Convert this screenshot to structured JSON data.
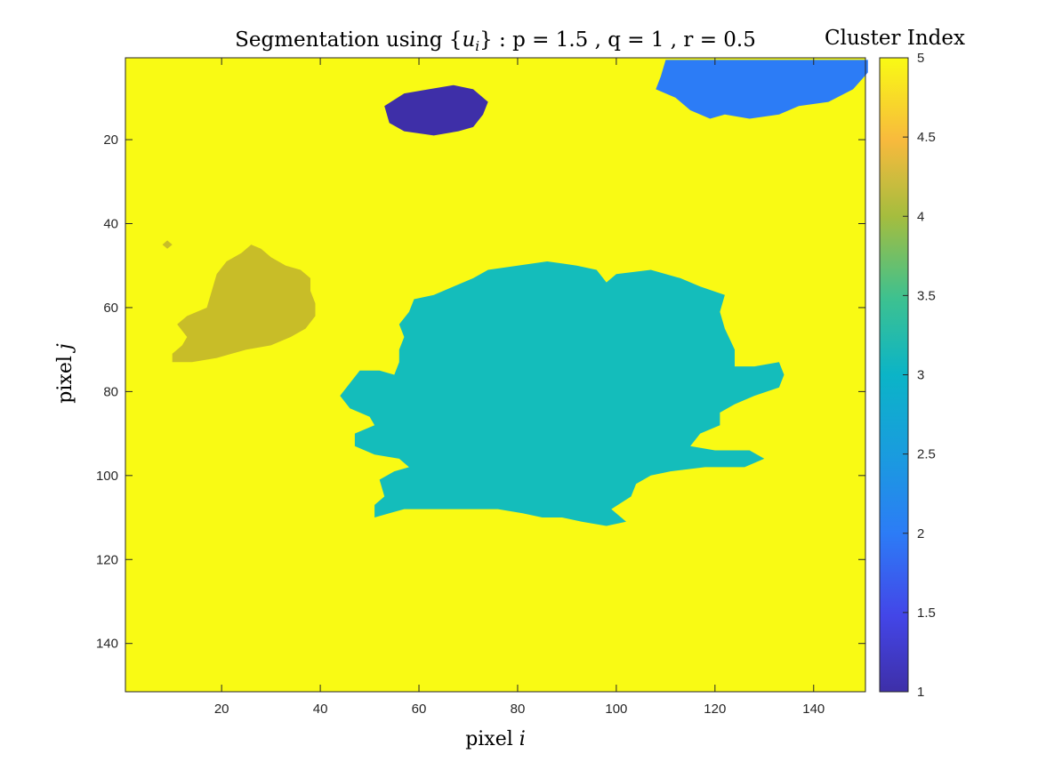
{
  "chart_data": {
    "type": "heatmap",
    "title_prefix": "Segmentation using {",
    "title_var": "u",
    "title_sub": "i",
    "title_suffix": "} : p = 1.5 , q = 1 , r = 0.5",
    "xlabel_text": "pixel ",
    "xlabel_var": "i",
    "ylabel_text": "pixel ",
    "ylabel_var": "j",
    "colorbar_title": "Cluster Index",
    "xlim": [
      0.5,
      150.5
    ],
    "ylim": [
      0.5,
      151.5
    ],
    "y_direction": "reverse",
    "colormap": "parula",
    "clim": [
      1,
      5
    ],
    "background_cluster": 5,
    "x_ticks": [
      20,
      40,
      60,
      80,
      100,
      120,
      140
    ],
    "x_tick_labels": [
      "20",
      "40",
      "60",
      "80",
      "100",
      "120",
      "140"
    ],
    "y_ticks": [
      20,
      40,
      60,
      80,
      100,
      120,
      140
    ],
    "y_tick_labels": [
      "20",
      "40",
      "60",
      "80",
      "100",
      "120",
      "140"
    ],
    "colorbar_ticks": [
      1,
      1.5,
      2,
      2.5,
      3,
      3.5,
      4,
      4.5,
      5
    ],
    "colorbar_tick_labels": [
      "1",
      "1.5",
      "2",
      "2.5",
      "3",
      "3.5",
      "4",
      "4.5",
      "5"
    ],
    "cluster_colors": {
      "1": "#3E2FA8",
      "2": "#2C7CF6",
      "3": "#14BDBB",
      "4": "#C8BD28",
      "5": "#F9FA14"
    },
    "regions": [
      {
        "cluster": 1,
        "outline": [
          [
            53,
            12
          ],
          [
            57,
            9
          ],
          [
            62,
            8
          ],
          [
            67,
            7
          ],
          [
            71,
            8
          ],
          [
            74,
            11
          ],
          [
            73,
            14
          ],
          [
            71,
            17
          ],
          [
            68,
            18
          ],
          [
            63,
            19
          ],
          [
            57,
            18
          ],
          [
            54,
            16
          ]
        ]
      },
      {
        "cluster": 2,
        "outline": [
          [
            110,
            1
          ],
          [
            151,
            1
          ],
          [
            151,
            4
          ],
          [
            148,
            8
          ],
          [
            143,
            11
          ],
          [
            137,
            12
          ],
          [
            133,
            14
          ],
          [
            127,
            15
          ],
          [
            122,
            14
          ],
          [
            119,
            15
          ],
          [
            115,
            13
          ],
          [
            112,
            10
          ],
          [
            108,
            8
          ],
          [
            109,
            5
          ]
        ]
      },
      {
        "cluster": 4,
        "outline": [
          [
            26,
            45
          ],
          [
            28,
            46
          ],
          [
            30,
            48
          ],
          [
            33,
            50
          ],
          [
            36,
            51
          ],
          [
            38,
            53
          ],
          [
            38,
            56
          ],
          [
            39,
            59
          ],
          [
            39,
            62
          ],
          [
            37,
            65
          ],
          [
            34,
            67
          ],
          [
            30,
            69
          ],
          [
            25,
            70
          ],
          [
            19,
            72
          ],
          [
            14,
            73
          ],
          [
            10,
            73
          ],
          [
            10,
            71
          ],
          [
            12,
            69
          ],
          [
            13,
            67
          ],
          [
            11,
            64
          ],
          [
            13,
            62
          ],
          [
            17,
            60
          ],
          [
            18,
            56
          ],
          [
            19,
            52
          ],
          [
            21,
            49
          ],
          [
            24,
            47
          ]
        ]
      },
      {
        "cluster": 4,
        "outline": [
          [
            8,
            45
          ],
          [
            9,
            44
          ],
          [
            10,
            45
          ],
          [
            9,
            46
          ]
        ]
      },
      {
        "cluster": 3,
        "outline": [
          [
            80,
            50
          ],
          [
            86,
            49
          ],
          [
            92,
            50
          ],
          [
            96,
            51
          ],
          [
            98,
            54
          ],
          [
            100,
            52
          ],
          [
            107,
            51
          ],
          [
            113,
            53
          ],
          [
            117,
            55
          ],
          [
            122,
            57
          ],
          [
            121,
            61
          ],
          [
            122,
            65
          ],
          [
            124,
            70
          ],
          [
            124,
            74
          ],
          [
            128,
            74
          ],
          [
            133,
            73
          ],
          [
            134,
            76
          ],
          [
            133,
            79
          ],
          [
            128,
            81
          ],
          [
            124,
            83
          ],
          [
            121,
            85
          ],
          [
            121,
            88
          ],
          [
            117,
            90
          ],
          [
            115,
            93
          ],
          [
            120,
            94
          ],
          [
            127,
            94
          ],
          [
            130,
            96
          ],
          [
            126,
            98
          ],
          [
            118,
            98
          ],
          [
            111,
            99
          ],
          [
            107,
            100
          ],
          [
            104,
            102
          ],
          [
            103,
            105
          ],
          [
            99,
            108
          ],
          [
            102,
            111
          ],
          [
            98,
            112
          ],
          [
            93,
            111
          ],
          [
            89,
            110
          ],
          [
            85,
            110
          ],
          [
            81,
            109
          ],
          [
            76,
            108
          ],
          [
            70,
            108
          ],
          [
            63,
            108
          ],
          [
            57,
            108
          ],
          [
            54,
            109
          ],
          [
            51,
            110
          ],
          [
            51,
            107
          ],
          [
            53,
            105
          ],
          [
            52,
            101
          ],
          [
            55,
            99
          ],
          [
            58,
            98
          ],
          [
            56,
            96
          ],
          [
            51,
            95
          ],
          [
            47,
            93
          ],
          [
            47,
            90
          ],
          [
            51,
            88
          ],
          [
            50,
            86
          ],
          [
            46,
            84
          ],
          [
            44,
            81
          ],
          [
            46,
            78
          ],
          [
            48,
            75
          ],
          [
            52,
            75
          ],
          [
            55,
            76
          ],
          [
            56,
            73
          ],
          [
            56,
            70
          ],
          [
            57,
            67
          ],
          [
            56,
            64
          ],
          [
            58,
            61
          ],
          [
            59,
            58
          ],
          [
            63,
            57
          ],
          [
            67,
            55
          ],
          [
            71,
            53
          ],
          [
            74,
            51
          ]
        ]
      }
    ]
  }
}
